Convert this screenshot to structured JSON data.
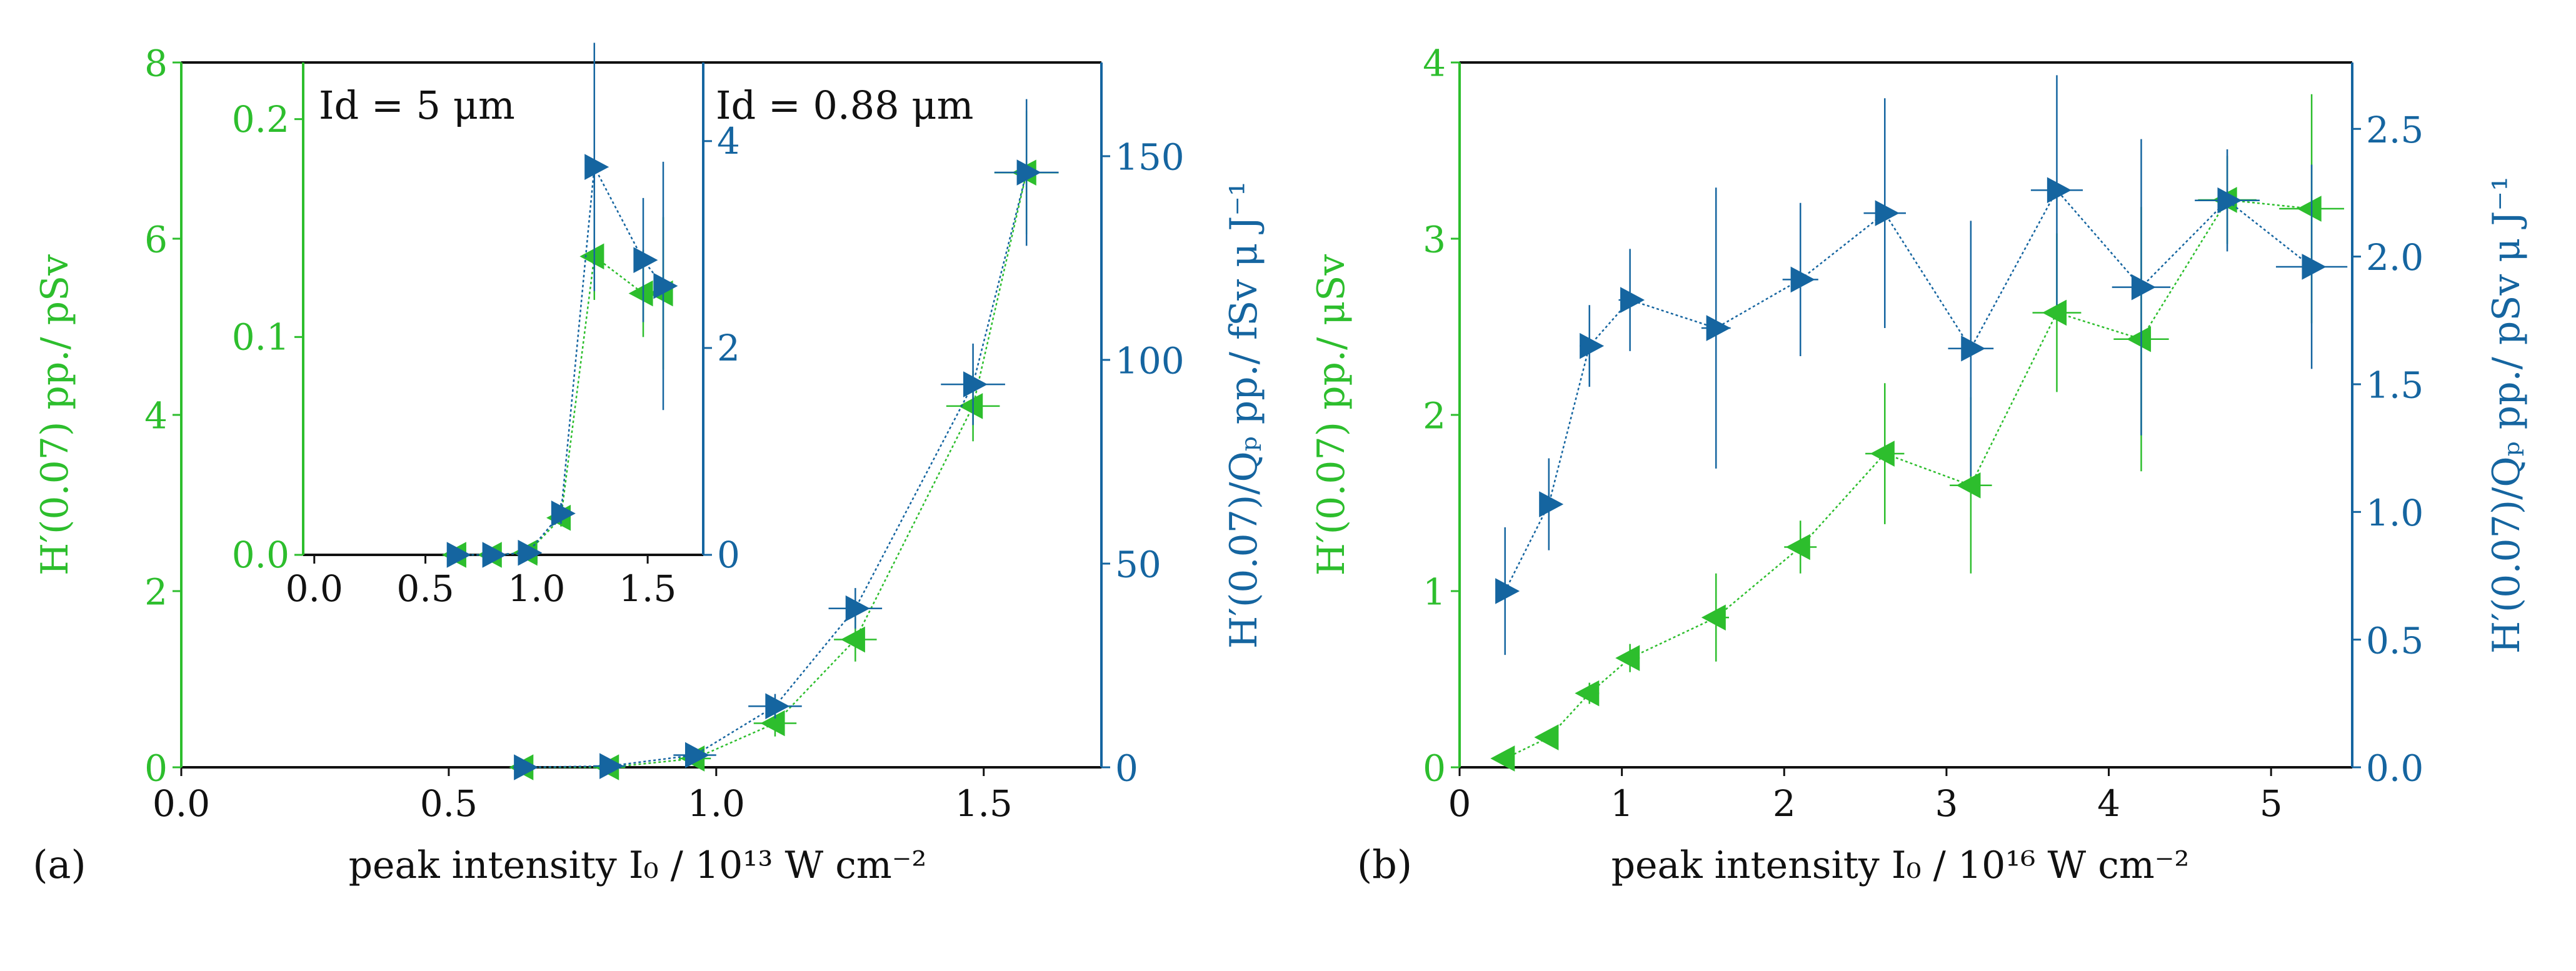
{
  "colors": {
    "green": "#2DBE2D",
    "blue": "#1565A0",
    "axis": "#111111"
  },
  "chart_data": [
    {
      "id": "panel-a",
      "type": "scatter",
      "panel_label": "(a)",
      "xlabel": "peak intensity I₀ / 10¹³ W cm⁻²",
      "ylabel_left": "H′(0.07) pp./ pSv",
      "ylabel_right": "H′(0.07)/Qₚ pp./ fSv μ J⁻¹",
      "annotation": "Id = 0.88 μm",
      "xlim": [
        0,
        1.72
      ],
      "ylim_left": [
        0,
        8
      ],
      "ylim_right": [
        0,
        173
      ],
      "xticks": [
        "0.0",
        "0.5",
        "1.0",
        "1.5"
      ],
      "xtick_values": [
        0,
        0.5,
        1.0,
        1.5
      ],
      "yticks_left": [
        "0",
        "2",
        "4",
        "6",
        "8"
      ],
      "ytick_values_left": [
        0,
        2,
        4,
        6,
        8
      ],
      "yticks_right": [
        "0",
        "50",
        "100",
        "150"
      ],
      "ytick_values_right": [
        0,
        50,
        100,
        150
      ],
      "series": [
        {
          "name": "H′(0.07) pp.",
          "axis": "left",
          "marker": "left-triangle",
          "color": "#2DBE2D",
          "x": [
            0.64,
            0.8,
            0.96,
            1.11,
            1.26,
            1.48,
            1.58
          ],
          "y": [
            0.0,
            0.0,
            0.1,
            0.5,
            1.45,
            4.1,
            6.75
          ],
          "xerr": [
            0.02,
            0.03,
            0.03,
            0.04,
            0.04,
            0.05,
            0.06
          ],
          "yerr": [
            0.0,
            0.0,
            0.05,
            0.15,
            0.25,
            0.4,
            0.7
          ]
        },
        {
          "name": "H′(0.07)/Qₚ pp.",
          "axis": "right",
          "marker": "right-triangle",
          "color": "#1565A0",
          "x": [
            0.64,
            0.8,
            0.96,
            1.11,
            1.26,
            1.48,
            1.58
          ],
          "y": [
            0.0,
            0.3,
            3.0,
            15.0,
            39.0,
            94.0,
            146.0
          ],
          "xerr": [
            0.02,
            0.03,
            0.04,
            0.05,
            0.05,
            0.06,
            0.06
          ],
          "yerr": [
            0.0,
            0.5,
            1.5,
            3.0,
            5.0,
            10.0,
            18.0
          ]
        }
      ],
      "inset": {
        "annotation": "Id = 5 μm",
        "xlim": [
          -0.05,
          1.75
        ],
        "ylim_left": [
          0,
          0.226
        ],
        "ylim_right": [
          0,
          4.76
        ],
        "xticks": [
          "0.0",
          "0.5",
          "1.0",
          "1.5"
        ],
        "xtick_values": [
          0,
          0.5,
          1.0,
          1.5
        ],
        "yticks_left": [
          "0.0",
          "0.1",
          "0.2"
        ],
        "ytick_values_left": [
          0,
          0.1,
          0.2
        ],
        "yticks_right": [
          "0",
          "2",
          "4"
        ],
        "ytick_values_right": [
          0,
          2,
          4
        ],
        "series": [
          {
            "name": "H′(0.07) pp.",
            "axis": "left",
            "marker": "left-triangle",
            "color": "#2DBE2D",
            "x": [
              0.64,
              0.8,
              0.96,
              1.11,
              1.26,
              1.48,
              1.57
            ],
            "y": [
              0.0,
              0.0,
              0.001,
              0.017,
              0.137,
              0.12,
              0.12
            ],
            "xerr": [
              0.02,
              0.02,
              0.02,
              0.03,
              0.03,
              0.04,
              0.04
            ],
            "yerr": [
              0.0,
              0.0,
              0.001,
              0.004,
              0.02,
              0.02,
              0.035
            ]
          },
          {
            "name": "H′(0.07)/Qₚ pp.",
            "axis": "right",
            "marker": "right-triangle",
            "color": "#1565A0",
            "x": [
              0.64,
              0.8,
              0.96,
              1.11,
              1.26,
              1.48,
              1.57
            ],
            "y": [
              0.0,
              0.0,
              0.02,
              0.4,
              3.75,
              2.85,
              2.6
            ],
            "xerr": [
              0.02,
              0.02,
              0.02,
              0.03,
              0.03,
              0.04,
              0.04
            ],
            "yerr": [
              0.0,
              0.0,
              0.02,
              0.1,
              1.2,
              0.6,
              1.2
            ]
          }
        ]
      }
    },
    {
      "id": "panel-b",
      "type": "scatter",
      "panel_label": "(b)",
      "xlabel": "peak intensity I₀ / 10¹⁶ W cm⁻²",
      "ylabel_left": "H′(0.07) pp./ μSv",
      "ylabel_right": "H′(0.07)/Qₚ pp./ pSv μ J⁻¹",
      "xlim": [
        0,
        5.5
      ],
      "ylim_left": [
        0,
        4
      ],
      "ylim_right": [
        0,
        2.76
      ],
      "xticks": [
        "0",
        "1",
        "2",
        "3",
        "4",
        "5"
      ],
      "xtick_values": [
        0,
        1,
        2,
        3,
        4,
        5
      ],
      "yticks_left": [
        "0",
        "1",
        "2",
        "3",
        "4"
      ],
      "ytick_values_left": [
        0,
        1,
        2,
        3,
        4
      ],
      "yticks_right": [
        "0.0",
        "0.5",
        "1.0",
        "1.5",
        "2.0",
        "2.5"
      ],
      "ytick_values_right": [
        0,
        0.5,
        1.0,
        1.5,
        2.0,
        2.5
      ],
      "series": [
        {
          "name": "H′(0.07) pp.",
          "axis": "left",
          "marker": "left-triangle",
          "color": "#2DBE2D",
          "x": [
            0.28,
            0.55,
            0.8,
            1.05,
            1.58,
            2.1,
            2.62,
            3.15,
            3.68,
            4.2,
            4.73,
            5.25
          ],
          "y": [
            0.05,
            0.17,
            0.42,
            0.62,
            0.85,
            1.25,
            1.78,
            1.6,
            2.58,
            2.43,
            3.22,
            3.17
          ],
          "xerr": [
            0.05,
            0.05,
            0.06,
            0.06,
            0.08,
            0.1,
            0.12,
            0.13,
            0.15,
            0.17,
            0.18,
            0.2
          ],
          "yerr": [
            0.02,
            0.04,
            0.06,
            0.08,
            0.25,
            0.15,
            0.4,
            0.5,
            0.45,
            0.75,
            0.25,
            0.65
          ]
        },
        {
          "name": "H′(0.07)/Qₚ pp.",
          "axis": "right",
          "marker": "right-triangle",
          "color": "#1565A0",
          "x": [
            0.28,
            0.55,
            0.8,
            1.05,
            1.58,
            2.1,
            2.62,
            3.15,
            3.68,
            4.2,
            4.73,
            5.25
          ],
          "y": [
            0.69,
            1.03,
            1.65,
            1.83,
            1.72,
            1.91,
            2.17,
            1.64,
            2.26,
            1.88,
            2.22,
            1.96
          ],
          "xerr": [
            0.04,
            0.05,
            0.06,
            0.07,
            0.09,
            0.11,
            0.13,
            0.14,
            0.16,
            0.18,
            0.2,
            0.22
          ],
          "yerr": [
            0.25,
            0.18,
            0.16,
            0.2,
            0.55,
            0.3,
            0.45,
            0.5,
            0.45,
            0.58,
            0.2,
            0.4
          ]
        }
      ]
    }
  ]
}
